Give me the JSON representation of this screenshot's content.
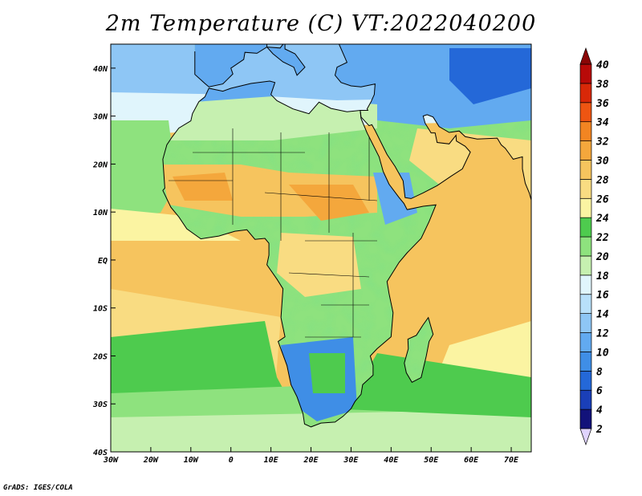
{
  "title": "2m Temperature (C) VT:2022040200",
  "credit": "GrADS: IGES/COLA",
  "map": {
    "lon_range": [
      -30,
      75
    ],
    "lat_range": [
      -40,
      45
    ],
    "x_ticks": [
      {
        "lon": -30,
        "label": "30W"
      },
      {
        "lon": -20,
        "label": "20W"
      },
      {
        "lon": -10,
        "label": "10W"
      },
      {
        "lon": 0,
        "label": "0"
      },
      {
        "lon": 10,
        "label": "10E"
      },
      {
        "lon": 20,
        "label": "20E"
      },
      {
        "lon": 30,
        "label": "30E"
      },
      {
        "lon": 40,
        "label": "40E"
      },
      {
        "lon": 50,
        "label": "50E"
      },
      {
        "lon": 60,
        "label": "60E"
      },
      {
        "lon": 70,
        "label": "70E"
      }
    ],
    "y_ticks": [
      {
        "lat": 40,
        "label": "40N"
      },
      {
        "lat": 30,
        "label": "30N"
      },
      {
        "lat": 20,
        "label": "20N"
      },
      {
        "lat": 10,
        "label": "10N"
      },
      {
        "lat": 0,
        "label": "EQ"
      },
      {
        "lat": -10,
        "label": "10S"
      },
      {
        "lat": -20,
        "label": "20S"
      },
      {
        "lat": -30,
        "label": "30S"
      },
      {
        "lat": -40,
        "label": "40S"
      }
    ]
  },
  "colorbar": {
    "levels": [
      "2",
      "4",
      "6",
      "8",
      "10",
      "12",
      "14",
      "16",
      "18",
      "20",
      "22",
      "24",
      "26",
      "28",
      "30",
      "32",
      "34",
      "36",
      "38",
      "40"
    ],
    "colors": [
      "#e0d4ff",
      "#12127a",
      "#1a3fb8",
      "#2468d8",
      "#3f8ee6",
      "#62aaf0",
      "#8ec6f5",
      "#b8e0fa",
      "#e0f5fc",
      "#c6f0b0",
      "#8ee27e",
      "#4ecb4e",
      "#fbf4a2",
      "#f9dc82",
      "#f6c45e",
      "#f4a73c",
      "#f28522",
      "#ee5512",
      "#d82808",
      "#b80a08",
      "#8a0606"
    ]
  }
}
